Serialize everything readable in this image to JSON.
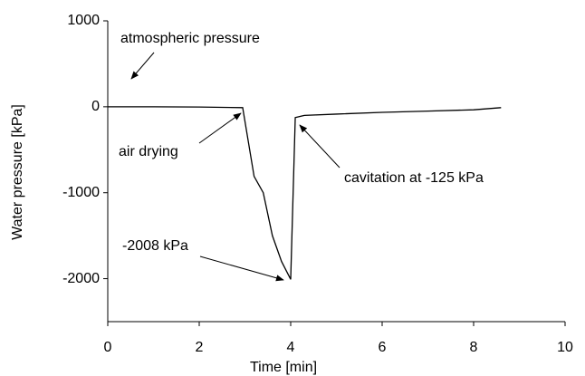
{
  "chart_data": {
    "type": "line",
    "x_label": "Time [min]",
    "y_label": "Water pressure [kPa]",
    "x": [
      0,
      1,
      2,
      2.95,
      3.2,
      3.4,
      3.6,
      3.8,
      4.0,
      4.1,
      4.3,
      5,
      6,
      7,
      8,
      8.6
    ],
    "values": [
      0,
      0,
      -3,
      -10,
      -810,
      -1000,
      -1500,
      -1800,
      -2008,
      -125,
      -100,
      -85,
      -65,
      -50,
      -35,
      -10
    ],
    "color": "#000000",
    "xlim": [
      0,
      10
    ],
    "xticks": [
      0,
      2,
      4,
      6,
      8,
      10
    ],
    "ylim": [
      -2500,
      1000
    ],
    "yticks": [
      -2000,
      -1000,
      0,
      1000
    ],
    "annotations": [
      "atmospheric pressure",
      "air drying",
      "cavitation at -125 kPa",
      "-2008 kPa"
    ]
  }
}
